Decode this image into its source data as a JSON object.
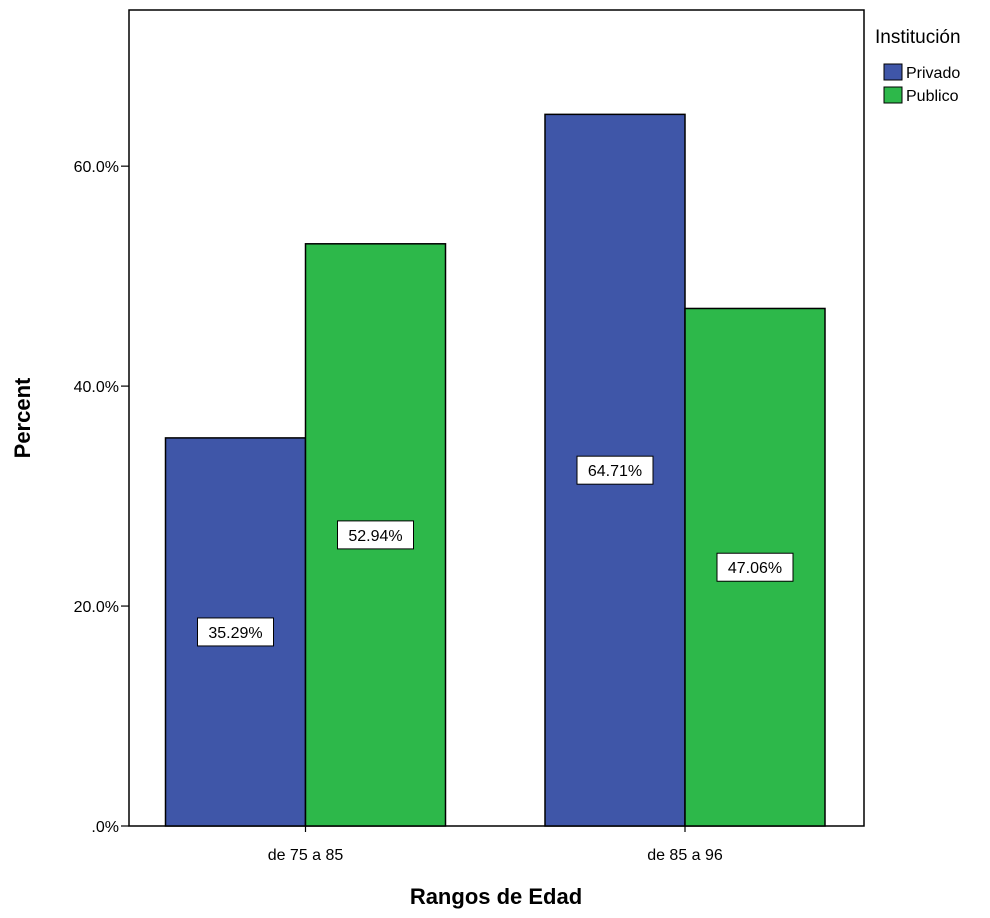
{
  "chart_data": {
    "type": "bar",
    "categories": [
      "de 75 a 85",
      "de 85 a 96"
    ],
    "series": [
      {
        "name": "Privado",
        "values": [
          35.29,
          64.71
        ],
        "labels": [
          "35.29%",
          "64.71%"
        ],
        "color": "#3f56a8"
      },
      {
        "name": "Publico",
        "values": [
          52.94,
          47.06
        ],
        "labels": [
          "52.94%",
          "47.06%"
        ],
        "color": "#2db84a"
      }
    ],
    "xlabel": "Rangos de Edad",
    "ylabel": "Percent",
    "ylim": [
      0,
      74.2
    ],
    "yticks": [
      0,
      20,
      40,
      60
    ],
    "ytick_labels": [
      ".0%",
      "20.0%",
      "40.0%",
      "60.0%"
    ],
    "legend": {
      "title": "Institución",
      "position": "top-right"
    },
    "grid": false
  }
}
